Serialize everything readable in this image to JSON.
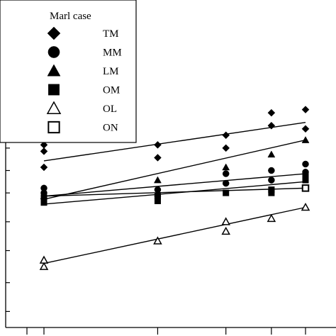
{
  "chart_data": {
    "type": "scatter",
    "legend": {
      "title": "Marl case",
      "placement": "top-left"
    },
    "x_ticks": [
      1,
      2,
      2.6,
      3,
      3.3
    ],
    "y_ticks": [
      0.5,
      1.4,
      2.4,
      3.3,
      4.2,
      4.9,
      5.6,
      6.4,
      7.4,
      8.1
    ],
    "xlim": [
      0.9,
      3.3
    ],
    "ylim": [
      0,
      10
    ],
    "grid": false,
    "series": [
      {
        "name": "TM",
        "marker": "diamond-filled",
        "points": [
          [
            1,
            5.7
          ],
          [
            1,
            5.0
          ],
          [
            1,
            5.5
          ],
          [
            2,
            5.7
          ],
          [
            2,
            5.3
          ],
          [
            2.6,
            5.6
          ],
          [
            2.6,
            6.0
          ],
          [
            3,
            6.3
          ],
          [
            3,
            6.7
          ],
          [
            3.3,
            6.2
          ],
          [
            3.3,
            6.8
          ]
        ],
        "fit": [
          [
            1,
            5.2
          ],
          [
            3.3,
            6.4
          ]
        ]
      },
      {
        "name": "MM",
        "marker": "circle-filled",
        "points": [
          [
            1,
            4.35
          ],
          [
            1,
            4.2
          ],
          [
            2,
            4.3
          ],
          [
            2,
            4.1
          ],
          [
            2.6,
            4.5
          ],
          [
            2.6,
            4.8
          ],
          [
            3,
            4.6
          ],
          [
            3,
            4.9
          ],
          [
            3.3,
            5.1
          ],
          [
            3.3,
            4.85
          ]
        ],
        "fit": [
          [
            1,
            4.1
          ],
          [
            3.3,
            4.8
          ]
        ]
      },
      {
        "name": "LM",
        "marker": "triangle-filled",
        "points": [
          [
            1,
            4.1
          ],
          [
            2,
            4.6
          ],
          [
            2.6,
            5.0
          ],
          [
            3,
            5.4
          ],
          [
            3.3,
            5.85
          ]
        ],
        "fit": [
          [
            1,
            4.0
          ],
          [
            3.3,
            5.85
          ]
        ]
      },
      {
        "name": "OM",
        "marker": "square-filled",
        "points": [
          [
            1,
            3.9
          ],
          [
            1,
            4.05
          ],
          [
            2,
            3.95
          ],
          [
            2,
            4.1
          ],
          [
            2.6,
            4.2
          ],
          [
            3,
            4.2
          ],
          [
            3,
            4.3
          ],
          [
            3.3,
            4.6
          ],
          [
            3.3,
            4.75
          ]
        ],
        "fit": [
          [
            1,
            3.85
          ],
          [
            3.3,
            4.55
          ]
        ]
      },
      {
        "name": "OL",
        "marker": "triangle-open",
        "points": [
          [
            1,
            1.9
          ],
          [
            1,
            2.1
          ],
          [
            2,
            2.7
          ],
          [
            2.6,
            3.0
          ],
          [
            2.6,
            3.3
          ],
          [
            3,
            3.4
          ],
          [
            3.3,
            3.75
          ]
        ],
        "fit": [
          [
            1,
            2.0
          ],
          [
            3.3,
            3.75
          ]
        ]
      },
      {
        "name": "ON",
        "marker": "square-open",
        "points": [
          [
            3.3,
            4.35
          ]
        ],
        "fit": [
          [
            1,
            4.1
          ],
          [
            3.3,
            4.35
          ]
        ]
      }
    ]
  }
}
